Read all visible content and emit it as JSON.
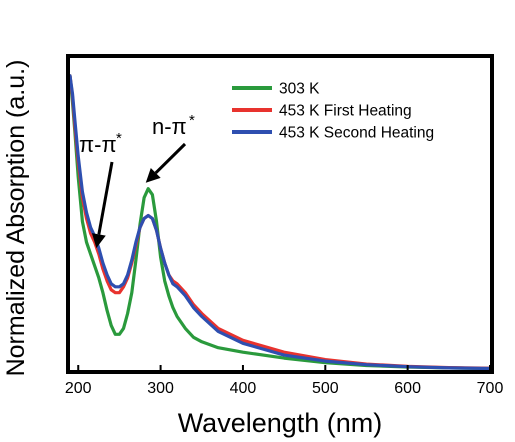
{
  "chart_data": {
    "type": "line",
    "title": "",
    "xlabel": "Wavelength (nm)",
    "ylabel": "Normalized Absorption (a.u.)",
    "xlim": [
      190,
      700
    ],
    "ylim": [
      0,
      1.05
    ],
    "xticks": [
      200,
      300,
      400,
      500,
      600,
      700
    ],
    "yticks_shown": false,
    "grid": false,
    "legend_position": "top-right",
    "series": [
      {
        "name": "303 K",
        "color": "#2a9a3c",
        "x": [
          190,
          193,
          196,
          200,
          205,
          210,
          215,
          220,
          225,
          230,
          235,
          240,
          245,
          250,
          255,
          260,
          265,
          270,
          275,
          280,
          285,
          290,
          295,
          300,
          305,
          310,
          315,
          320,
          330,
          340,
          350,
          370,
          400,
          450,
          500,
          550,
          600,
          650,
          700
        ],
        "y": [
          0.99,
          0.9,
          0.8,
          0.65,
          0.5,
          0.43,
          0.39,
          0.35,
          0.31,
          0.26,
          0.2,
          0.15,
          0.12,
          0.12,
          0.14,
          0.19,
          0.26,
          0.37,
          0.49,
          0.58,
          0.61,
          0.59,
          0.5,
          0.38,
          0.3,
          0.25,
          0.21,
          0.18,
          0.14,
          0.11,
          0.095,
          0.075,
          0.06,
          0.04,
          0.025,
          0.015,
          0.01,
          0.007,
          0.005
        ]
      },
      {
        "name": "453 K First Heating",
        "color": "#e8332e",
        "x": [
          190,
          193,
          196,
          200,
          205,
          210,
          215,
          220,
          225,
          230,
          235,
          240,
          245,
          250,
          255,
          260,
          265,
          270,
          275,
          280,
          285,
          290,
          295,
          300,
          305,
          310,
          315,
          320,
          330,
          340,
          350,
          370,
          400,
          450,
          500,
          550,
          600,
          650,
          700
        ],
        "y": [
          0.99,
          0.92,
          0.82,
          0.7,
          0.58,
          0.51,
          0.46,
          0.43,
          0.39,
          0.34,
          0.3,
          0.27,
          0.26,
          0.26,
          0.28,
          0.31,
          0.36,
          0.42,
          0.48,
          0.51,
          0.52,
          0.51,
          0.47,
          0.41,
          0.36,
          0.32,
          0.3,
          0.29,
          0.26,
          0.22,
          0.19,
          0.14,
          0.1,
          0.06,
          0.035,
          0.02,
          0.012,
          0.008,
          0.006
        ]
      },
      {
        "name": "453 K Second Heating",
        "color": "#2e4fb0",
        "x": [
          190,
          193,
          196,
          200,
          205,
          210,
          215,
          220,
          225,
          230,
          235,
          240,
          245,
          250,
          255,
          260,
          265,
          270,
          275,
          280,
          285,
          290,
          295,
          300,
          305,
          310,
          315,
          320,
          330,
          340,
          350,
          370,
          400,
          450,
          500,
          550,
          600,
          650,
          700
        ],
        "y": [
          0.99,
          0.93,
          0.84,
          0.72,
          0.6,
          0.53,
          0.48,
          0.45,
          0.41,
          0.36,
          0.32,
          0.29,
          0.28,
          0.28,
          0.29,
          0.32,
          0.37,
          0.43,
          0.48,
          0.51,
          0.52,
          0.51,
          0.47,
          0.41,
          0.36,
          0.32,
          0.29,
          0.28,
          0.25,
          0.21,
          0.18,
          0.13,
          0.09,
          0.05,
          0.03,
          0.018,
          0.011,
          0.007,
          0.005
        ]
      }
    ],
    "annotations": [
      {
        "text": "π-π",
        "superscript": "*",
        "arrow_to": {
          "x": 222,
          "y": 0.41
        }
      },
      {
        "text": "n-π",
        "superscript": "*",
        "arrow_to": {
          "x": 282,
          "y": 0.63
        }
      }
    ]
  }
}
